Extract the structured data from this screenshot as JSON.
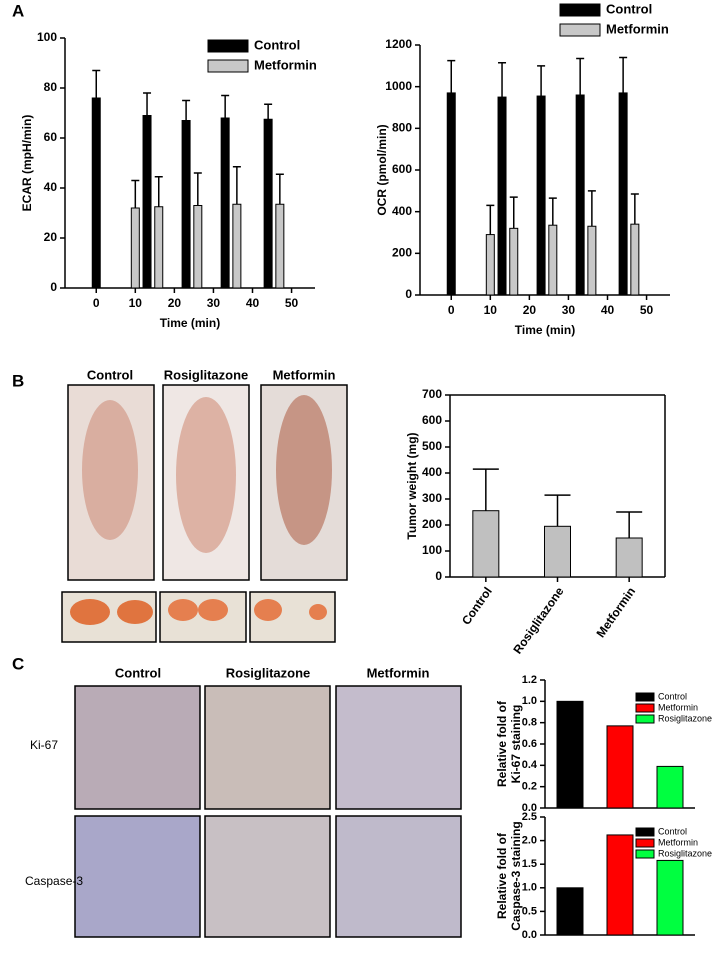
{
  "figure": {
    "panel_labels": [
      "A",
      "B",
      "C"
    ],
    "mouse_photo_labels": [
      "Control",
      "Rosiglitazone",
      "Metformin"
    ],
    "ihc_columns": [
      "Control",
      "Rosiglitazone",
      "Metformin"
    ],
    "ihc_rows": [
      "Ki-67",
      "Caspase-3"
    ]
  },
  "chart_data": [
    {
      "type": "bar",
      "ylabel": "ECAR  (mpH/min)",
      "xlabel": "Time (min)",
      "xlim": [
        -8,
        56
      ],
      "xticks": [
        0,
        10,
        20,
        30,
        40,
        50
      ],
      "ylim": [
        0,
        100
      ],
      "yticks": [
        0,
        20,
        40,
        60,
        80,
        100
      ],
      "series": [
        {
          "name": "Control",
          "color": "#000000",
          "x": [
            0,
            13,
            23,
            33,
            44
          ],
          "values": [
            76,
            69,
            67,
            68,
            67.5
          ],
          "errors": [
            11,
            9,
            8,
            9,
            6
          ]
        },
        {
          "name": "Metformin",
          "color": "#c8c8c8",
          "x": [
            10,
            16,
            26,
            36,
            47
          ],
          "values": [
            32,
            32.5,
            33,
            33.5,
            33.5
          ],
          "errors": [
            11,
            12,
            13,
            15,
            12
          ]
        }
      ]
    },
    {
      "type": "bar",
      "ylabel": "OCR (pmol/min)",
      "xlabel": "Time (min)",
      "xlim": [
        -8,
        56
      ],
      "xticks": [
        0,
        10,
        20,
        30,
        40,
        50
      ],
      "ylim": [
        0,
        1200
      ],
      "yticks": [
        0,
        200,
        400,
        600,
        800,
        1000,
        1200
      ],
      "series": [
        {
          "name": "Control",
          "color": "#000000",
          "x": [
            0,
            13,
            23,
            33,
            44
          ],
          "values": [
            970,
            950,
            955,
            960,
            970
          ],
          "errors": [
            155,
            165,
            145,
            175,
            170
          ]
        },
        {
          "name": "Metformin",
          "color": "#c8c8c8",
          "x": [
            10,
            16,
            26,
            36,
            47
          ],
          "values": [
            290,
            320,
            335,
            330,
            340
          ],
          "errors": [
            140,
            150,
            130,
            170,
            145
          ]
        }
      ]
    },
    {
      "type": "bar",
      "ylabel": "Tumor weight (mg)",
      "categories": [
        "Control",
        "Rosiglitazone",
        "Metformin"
      ],
      "values": [
        255,
        195,
        150
      ],
      "errors": [
        160,
        120,
        100
      ],
      "color": "#c0c0c0",
      "ylim": [
        0,
        700
      ],
      "yticks": [
        0,
        100,
        200,
        300,
        400,
        500,
        600,
        700
      ]
    },
    {
      "type": "bar",
      "ylabel": [
        "Relative fold of",
        "Ki-67 staining"
      ],
      "ylim": [
        0,
        1.2
      ],
      "yticks": [
        {
          "value": 0,
          "label": "0.0"
        },
        {
          "value": 0.2,
          "label": "0.2"
        },
        {
          "value": 0.4,
          "label": "0.4"
        },
        {
          "value": 0.6,
          "label": "0.6"
        },
        {
          "value": 0.8,
          "label": "0.8"
        },
        {
          "value": 1,
          "label": "1.0"
        },
        {
          "value": 1.2,
          "label": "1.2"
        }
      ],
      "series": [
        {
          "name": "Control",
          "color": "#000000",
          "values": [
            1.0
          ]
        },
        {
          "name": "Metformin",
          "color": "#ff0000",
          "values": [
            0.77
          ]
        },
        {
          "name": "Rosiglitazone",
          "color": "#00ff40",
          "values": [
            0.39
          ]
        }
      ]
    },
    {
      "type": "bar",
      "ylabel": [
        "Relative fold of",
        "Caspase-3 staining"
      ],
      "ylim": [
        0,
        2.5
      ],
      "yticks": [
        {
          "value": 0,
          "label": "0.0"
        },
        {
          "value": 0.5,
          "label": "0.5"
        },
        {
          "value": 1,
          "label": "1.0"
        },
        {
          "value": 1.5,
          "label": "1.5"
        },
        {
          "value": 2,
          "label": "2.0"
        },
        {
          "value": 2.5,
          "label": "2.5"
        }
      ],
      "series": [
        {
          "name": "Control",
          "color": "#000000",
          "values": [
            1.0
          ]
        },
        {
          "name": "Metformin",
          "color": "#ff0000",
          "values": [
            2.12
          ]
        },
        {
          "name": "Rosiglitazone",
          "color": "#00ff40",
          "values": [
            1.58
          ]
        }
      ]
    }
  ]
}
